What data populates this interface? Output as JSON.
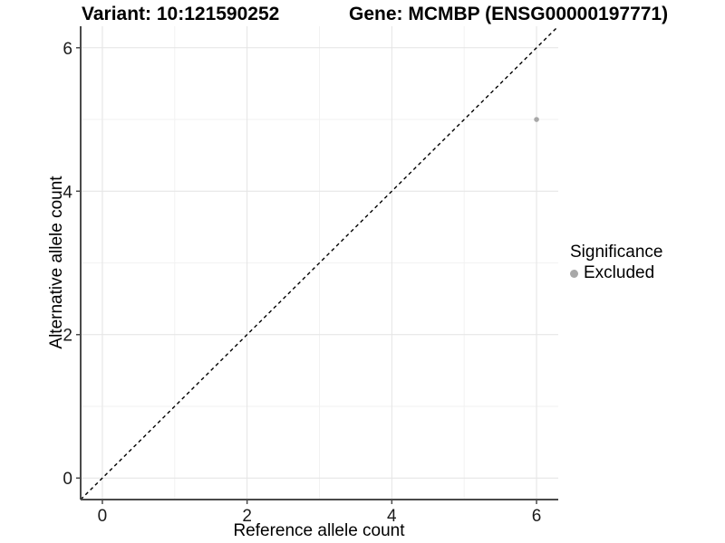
{
  "header": {
    "variant_title": "Variant: 10:121590252",
    "gene_title": "Gene: MCMBP (ENSG00000197771)"
  },
  "axes": {
    "x": {
      "label": "Reference allele count",
      "tick_labels": [
        "0",
        "2",
        "4",
        "6"
      ]
    },
    "y": {
      "label": "Alternative allele count",
      "tick_labels": [
        "0",
        "2",
        "4",
        "6"
      ]
    }
  },
  "legend": {
    "title": "Significance",
    "items": [
      {
        "label": "Excluded",
        "color": "#a8a8a8"
      }
    ]
  },
  "chart_data": {
    "type": "scatter",
    "title": "Variant: 10:121590252 — Gene: MCMBP (ENSG00000197771)",
    "xlabel": "Reference allele count",
    "ylabel": "Alternative allele count",
    "xlim": [
      -0.3,
      6.3
    ],
    "ylim": [
      -0.3,
      6.3
    ],
    "x_ticks": [
      0,
      2,
      4,
      6
    ],
    "y_ticks": [
      0,
      2,
      4,
      6
    ],
    "minor_ticks_x": [
      1,
      3,
      5
    ],
    "minor_ticks_y": [
      1,
      3,
      5
    ],
    "grid": true,
    "legend_position": "right",
    "series": [
      {
        "name": "Excluded",
        "color": "#a8a8a8",
        "point_radius": 2.8,
        "points": [
          {
            "x": 6,
            "y": 5
          }
        ]
      }
    ],
    "reference_line": {
      "type": "identity y=x",
      "style": "dashed",
      "color": "#000000",
      "from": [
        -0.3,
        -0.3
      ],
      "to": [
        6.3,
        6.3
      ]
    },
    "colors": {
      "background": "#ffffff",
      "grid_major": "#e4e4e4",
      "grid_minor": "#f2f2f2",
      "axis_line": "#4a4a4a",
      "tick_text": "#1a1a1a"
    }
  }
}
